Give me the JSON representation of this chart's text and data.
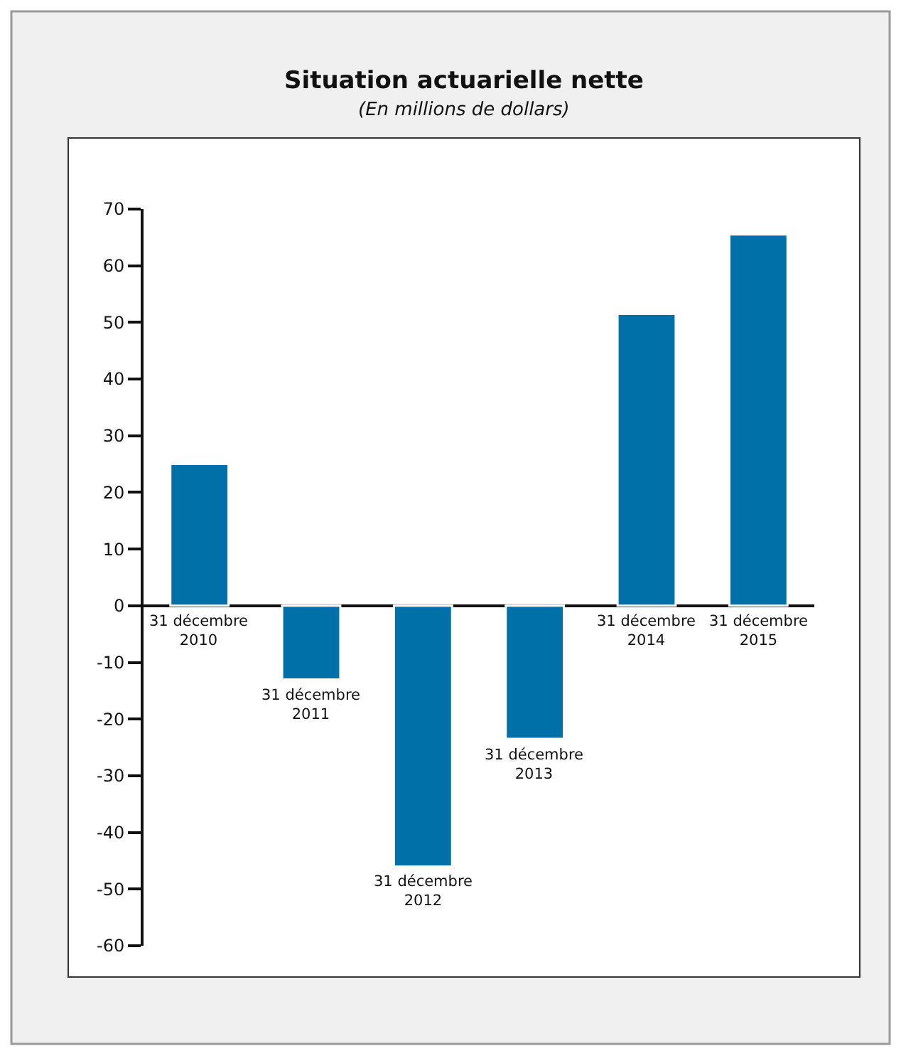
{
  "chart_data": {
    "type": "bar",
    "title": "Situation actuarielle nette",
    "subtitle": "(En millions de dollars)",
    "categories": [
      "31 décembre 2010",
      "31 décembre 2011",
      "31 décembre 2012",
      "31 décembre 2013",
      "31 décembre 2014",
      "31 décembre 2015"
    ],
    "values": [
      25,
      -13,
      -46,
      -23.5,
      51.5,
      65.5
    ],
    "color": "#0070a8",
    "ylim": [
      -60,
      70
    ],
    "yticks": [
      -60,
      -50,
      -40,
      -30,
      -20,
      -10,
      0,
      10,
      20,
      30,
      40,
      50,
      60,
      70
    ]
  }
}
